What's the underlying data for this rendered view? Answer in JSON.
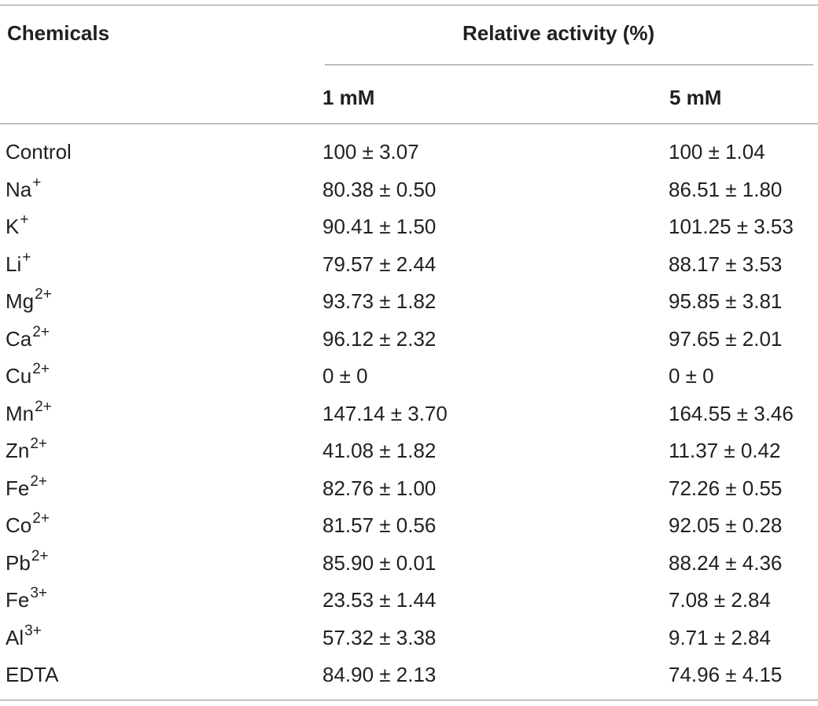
{
  "table": {
    "headers": {
      "chemicals": "Chemicals",
      "relative_activity": "Relative activity (%)",
      "col_1mm": "1 mM",
      "col_5mm": "5 mM"
    },
    "rows": [
      {
        "chemical": "Control",
        "charge": "",
        "mm1": "100 ± 3.07",
        "mm5": "100 ± 1.04"
      },
      {
        "chemical": "Na",
        "charge": "+",
        "mm1": "80.38 ± 0.50",
        "mm5": "86.51 ± 1.80"
      },
      {
        "chemical": "K",
        "charge": "+",
        "mm1": "90.41 ± 1.50",
        "mm5": "101.25 ± 3.53"
      },
      {
        "chemical": "Li",
        "charge": "+",
        "mm1": "79.57 ± 2.44",
        "mm5": "88.17 ± 3.53"
      },
      {
        "chemical": "Mg",
        "charge": "2+",
        "mm1": "93.73 ± 1.82",
        "mm5": "95.85 ± 3.81"
      },
      {
        "chemical": "Ca",
        "charge": "2+",
        "mm1": "96.12 ± 2.32",
        "mm5": "97.65 ± 2.01"
      },
      {
        "chemical": "Cu",
        "charge": "2+",
        "mm1": "0 ± 0",
        "mm5": "0 ± 0"
      },
      {
        "chemical": "Mn",
        "charge": "2+",
        "mm1": "147.14 ± 3.70",
        "mm5": "164.55 ± 3.46"
      },
      {
        "chemical": "Zn",
        "charge": "2+",
        "mm1": "41.08 ± 1.82",
        "mm5": "11.37 ± 0.42"
      },
      {
        "chemical": "Fe",
        "charge": "2+",
        "mm1": "82.76 ± 1.00",
        "mm5": "72.26 ± 0.55"
      },
      {
        "chemical": "Co",
        "charge": "2+",
        "mm1": "81.57 ± 0.56",
        "mm5": "92.05 ± 0.28"
      },
      {
        "chemical": "Pb",
        "charge": "2+",
        "mm1": "85.90 ± 0.01",
        "mm5": "88.24 ± 4.36"
      },
      {
        "chemical": "Fe",
        "charge": "3+",
        "mm1": "23.53 ± 1.44",
        "mm5": "7.08 ± 2.84"
      },
      {
        "chemical": "Al",
        "charge": "3+",
        "mm1": "57.32 ± 3.38",
        "mm5": "9.71 ± 2.84"
      },
      {
        "chemical": "EDTA",
        "charge": "",
        "mm1": "84.90 ± 2.13",
        "mm5": "74.96 ± 4.15"
      }
    ]
  }
}
